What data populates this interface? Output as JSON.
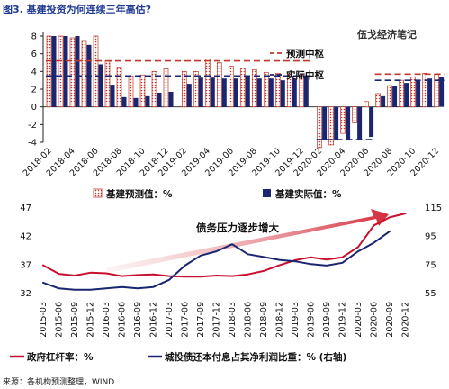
{
  "header": {
    "figure_title": "图3. 基建投资为何连续三年高估?",
    "watermark": "伍戈经济笔记",
    "source": "来源：各机构预测整理，WIND"
  },
  "chart_data": [
    {
      "type": "bar",
      "ylim": [
        -4,
        8
      ],
      "yticks": [
        8,
        6,
        4,
        2,
        0,
        -2,
        -4
      ],
      "x_tick_labels": [
        "2018-02",
        "2018-04",
        "2018-06",
        "2018-08",
        "2018-10",
        "2018-12",
        "2019-02",
        "2019-04",
        "2019-06",
        "2019-08",
        "2019-10",
        "2019-12",
        "2020-02",
        "2020-04",
        "2020-06",
        "2020-08",
        "2020-10",
        "2020-12"
      ],
      "categories": [
        "2018-02",
        "2018-03",
        "2018-04",
        "2018-05",
        "2018-06",
        "2018-07",
        "2018-08",
        "2018-09",
        "2018-10",
        "2018-11",
        "2018-12",
        "2019-02",
        "2019-03",
        "2019-04",
        "2019-05",
        "2019-06",
        "2019-07",
        "2019-08",
        "2019-09",
        "2019-10",
        "2019-11",
        "2019-12",
        "2020-02",
        "2020-03",
        "2020-04",
        "2020-05",
        "2020-06",
        "2020-07",
        "2020-08",
        "2020-09",
        "2020-10",
        "2020-11",
        "2020-12"
      ],
      "series": [
        {
          "name": "基建预测值：%",
          "color": "#c0392b",
          "style": "hatched",
          "values": [
            8,
            8,
            7.8,
            7.5,
            8,
            5.2,
            4.5,
            3.5,
            3.6,
            4,
            4.3,
            4,
            4,
            5.4,
            5,
            4.6,
            4.4,
            4.2,
            3.9,
            3.8,
            3.7,
            3.6,
            -4.6,
            -4.3,
            -3,
            -1.8,
            0.6,
            1.5,
            2.4,
            3,
            3.4,
            3.8,
            3.7
          ]
        },
        {
          "name": "基建实际值：%",
          "color": "#1a2670",
          "style": "solid",
          "values": [
            8,
            8,
            8,
            7,
            4.8,
            2.5,
            1.1,
            1,
            1.2,
            1.6,
            1.7,
            2.6,
            3.3,
            3.3,
            3.2,
            3.2,
            3.4,
            3.2,
            3.2,
            3,
            3.2,
            3.4,
            -3.8,
            -3.8,
            -3.8,
            -3.7,
            -3.4,
            1.2,
            2.4,
            2.7,
            3,
            3.2,
            3.4
          ]
        }
      ],
      "reference_lines": [
        {
          "name": "预测中枢",
          "color": "#c0392b",
          "segments": [
            {
              "from": "2018-02",
              "to": "2019-12",
              "y": 5.2
            },
            {
              "from": "2020-07",
              "to": "2020-12",
              "y": 3.7
            }
          ]
        },
        {
          "name": "实际中枢",
          "color": "#1a2670",
          "segments": [
            {
              "from": "2018-02",
              "to": "2019-12",
              "y": 3.5
            },
            {
              "from": "2020-02",
              "to": "2020-06",
              "y": -3.7
            },
            {
              "from": "2020-07",
              "to": "2020-12",
              "y": 3.0
            }
          ]
        }
      ]
    },
    {
      "type": "line",
      "x_tick_labels": [
        "2015-03",
        "2015-06",
        "2015-09",
        "2015-12",
        "2016-03",
        "2016-06",
        "2016-09",
        "2016-12",
        "2017-03",
        "2017-06",
        "2017-09",
        "2017-12",
        "2018-03",
        "2018-06",
        "2018-09",
        "2018-12",
        "2019-03",
        "2019-06",
        "2019-09",
        "2019-12",
        "2020-03",
        "2020-06",
        "2020-09",
        "2020-12"
      ],
      "y_left": {
        "ylim": [
          32,
          47
        ],
        "ticks": [
          47,
          42,
          37,
          32
        ]
      },
      "y_right": {
        "ylim": [
          55,
          115
        ],
        "ticks": [
          115,
          95,
          75,
          55
        ]
      },
      "annotation": "债务压力逐步增大",
      "series": [
        {
          "name": "政府杠杆率：%",
          "axis": "left",
          "color": "#c8102e",
          "values": [
            36.8,
            35.3,
            35.0,
            35.5,
            35.4,
            34.9,
            35.1,
            35.2,
            34.9,
            34.8,
            34.8,
            35.0,
            34.9,
            35.2,
            35.8,
            36.8,
            37.7,
            38.2,
            37.8,
            38.2,
            40.0,
            43.8,
            45.2,
            45.9
          ]
        },
        {
          "name": "城投债还本付息占其净利润比重：% (右轴)",
          "axis": "right",
          "color": "#1a2670",
          "values": [
            62,
            58,
            57,
            57,
            58,
            59,
            58,
            59,
            64,
            74,
            81,
            84,
            89,
            82,
            80,
            78,
            77,
            75,
            74,
            76,
            84,
            90,
            98,
            null
          ]
        }
      ]
    }
  ]
}
